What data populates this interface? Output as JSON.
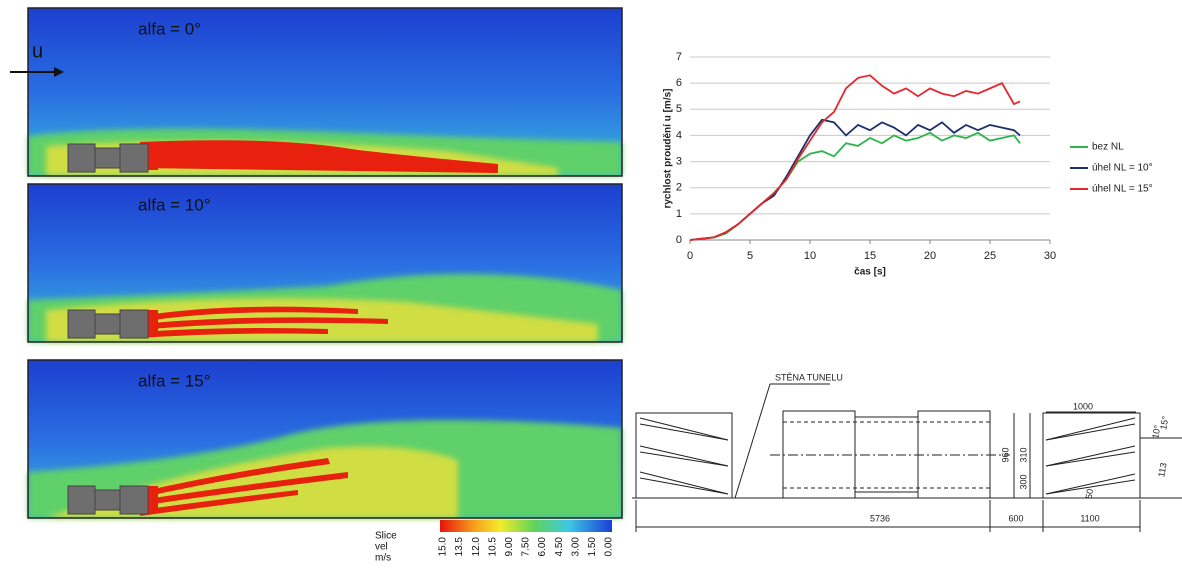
{
  "panels": [
    {
      "label": "alfa = 0°"
    },
    {
      "label": "alfa = 10°"
    },
    {
      "label": "alfa = 15°"
    }
  ],
  "flow_label": "u",
  "colorbar": {
    "title": [
      "Slice",
      "vel",
      "m/s"
    ],
    "ticks": [
      "15.0",
      "13.5",
      "12.0",
      "10.5",
      "9.00",
      "7.50",
      "6.00",
      "4.50",
      "3.00",
      "1.50",
      "0.00"
    ]
  },
  "chart_data": {
    "type": "line",
    "x": [
      0,
      1,
      2,
      3,
      4,
      5,
      6,
      7,
      8,
      9,
      10,
      11,
      12,
      13,
      14,
      15,
      16,
      17,
      18,
      19,
      20,
      21,
      22,
      23,
      24,
      25,
      26,
      27,
      27.5
    ],
    "series": [
      {
        "name": "bez NL",
        "color": "#2fb34a",
        "values": [
          0,
          0.05,
          0.1,
          0.25,
          0.6,
          1.0,
          1.4,
          1.8,
          2.3,
          3.0,
          3.3,
          3.4,
          3.2,
          3.7,
          3.6,
          3.9,
          3.7,
          4.0,
          3.8,
          3.9,
          4.1,
          3.8,
          4.0,
          3.9,
          4.1,
          3.8,
          3.9,
          4.0,
          3.7
        ]
      },
      {
        "name": "úhel NL = 10°",
        "color": "#1f2f6e",
        "values": [
          0,
          0.05,
          0.1,
          0.3,
          0.6,
          1.0,
          1.4,
          1.7,
          2.4,
          3.2,
          4.0,
          4.6,
          4.5,
          4.0,
          4.4,
          4.2,
          4.5,
          4.3,
          4.0,
          4.4,
          4.2,
          4.5,
          4.1,
          4.4,
          4.2,
          4.4,
          4.3,
          4.2,
          4.0
        ]
      },
      {
        "name": "úhel NL = 15°",
        "color": "#e8262b",
        "values": [
          0,
          0.05,
          0.1,
          0.3,
          0.6,
          1.0,
          1.4,
          1.8,
          2.3,
          3.1,
          3.8,
          4.5,
          4.9,
          5.8,
          6.2,
          6.3,
          5.9,
          5.6,
          5.8,
          5.5,
          5.8,
          5.6,
          5.5,
          5.7,
          5.6,
          5.8,
          6.0,
          5.2,
          5.3
        ]
      }
    ],
    "x_label": "čas [s]",
    "y_label": "rychlost proudění u [m/s]",
    "xlim": [
      0,
      30
    ],
    "xticks": [
      0,
      5,
      10,
      15,
      20,
      25,
      30
    ],
    "ylim": [
      0,
      7
    ],
    "yticks": [
      0,
      1,
      2,
      3,
      4,
      5,
      6,
      7
    ],
    "grid": true,
    "legend": "right"
  },
  "drawing": {
    "wall_label": "STĚNA TUNELU",
    "dimensions": [
      "1000",
      "15°",
      "10°",
      "310",
      "960",
      "300",
      "113",
      "50",
      "5736",
      "600",
      "1100"
    ]
  }
}
